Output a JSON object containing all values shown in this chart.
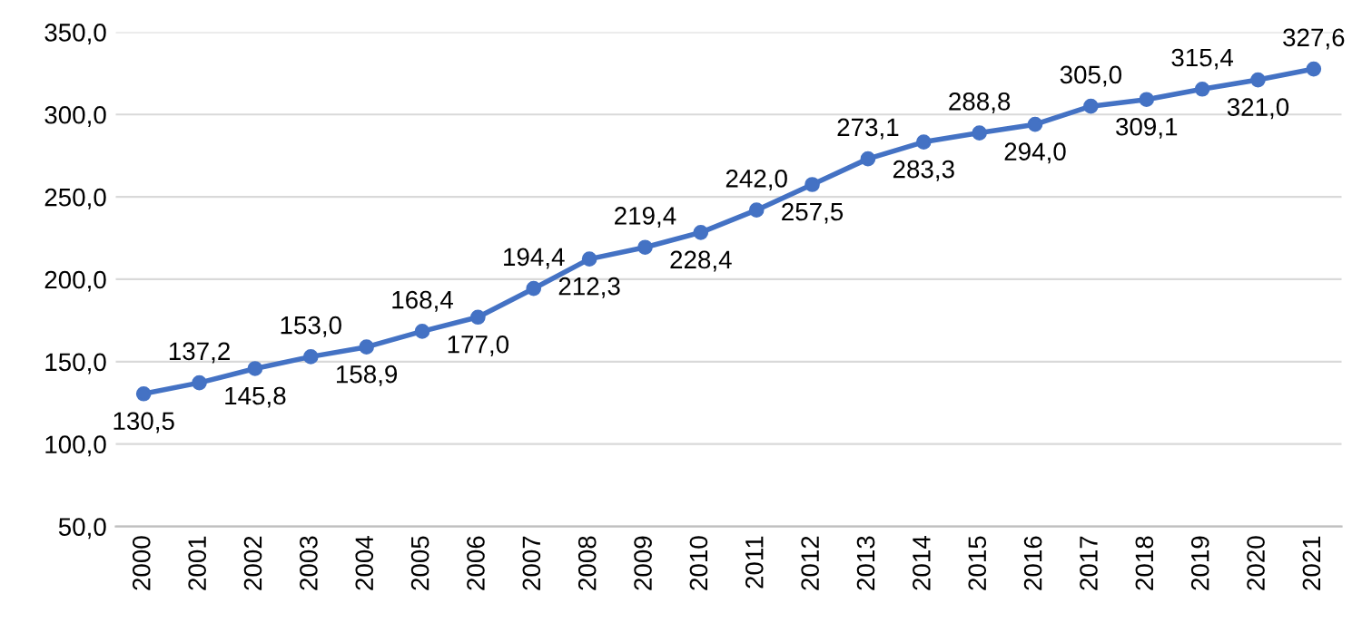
{
  "chart_data": {
    "type": "line",
    "categories": [
      "2000",
      "2001",
      "2002",
      "2003",
      "2004",
      "2005",
      "2006",
      "2007",
      "2008",
      "2009",
      "2010",
      "2011",
      "2012",
      "2013",
      "2014",
      "2015",
      "2016",
      "2017",
      "2018",
      "2019",
      "2020",
      "2021"
    ],
    "series": [
      {
        "color": "#4472c4",
        "values": [
          130.5,
          137.2,
          145.8,
          153.0,
          158.9,
          168.4,
          177.0,
          194.4,
          212.3,
          219.4,
          228.4,
          242.0,
          257.5,
          273.1,
          283.3,
          288.8,
          294.0,
          305.0,
          309.1,
          315.4,
          321.0,
          327.6
        ],
        "value_labels": [
          "130,5",
          "137,2",
          "145,8",
          "153,0",
          "158,9",
          "168,4",
          "177,0",
          "194,4",
          "212,3",
          "219,4",
          "228,4",
          "242,0",
          "257,5",
          "273,1",
          "283,3",
          "288,8",
          "294,0",
          "305,0",
          "309,1",
          "315,4",
          "321,0",
          "327,6"
        ]
      }
    ],
    "ylim": [
      50,
      350
    ],
    "yticks": [
      {
        "value": 50,
        "label": "50,0"
      },
      {
        "value": 100,
        "label": "100,0"
      },
      {
        "value": 150,
        "label": "150,0"
      },
      {
        "value": 200,
        "label": "200,0"
      },
      {
        "value": 250,
        "label": "250,0"
      },
      {
        "value": 300,
        "label": "300,0"
      },
      {
        "value": 350,
        "label": "350,0"
      }
    ],
    "grid": "y",
    "marker": "circle",
    "line_style": "solid",
    "legend": false
  }
}
